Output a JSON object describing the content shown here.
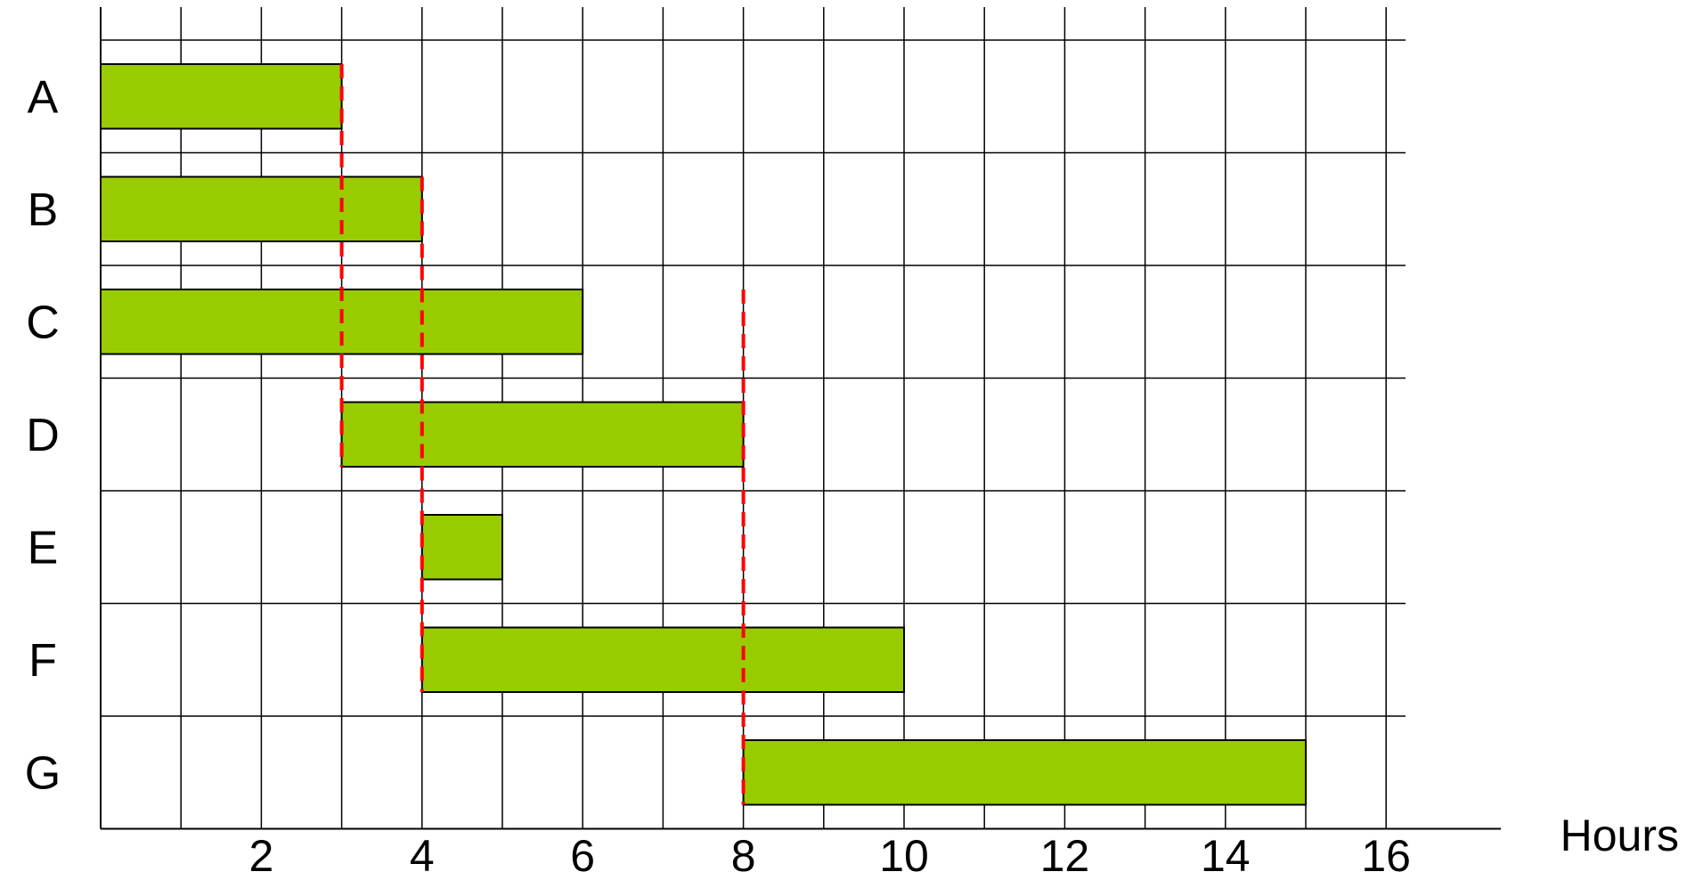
{
  "chart_data": {
    "type": "bar",
    "subtype": "gantt",
    "title": "",
    "xlabel": "Hours",
    "ylabel": "",
    "xlim": [
      0,
      16
    ],
    "xticks": [
      2,
      4,
      6,
      8,
      10,
      12,
      14,
      16
    ],
    "xtick_labels": [
      "2",
      "4",
      "6",
      "8",
      "10",
      "12",
      "14",
      "16"
    ],
    "grid": true,
    "categories": [
      "A",
      "B",
      "C",
      "D",
      "E",
      "F",
      "G"
    ],
    "tasks": [
      {
        "label": "A",
        "start": 0,
        "end": 3
      },
      {
        "label": "B",
        "start": 0,
        "end": 4
      },
      {
        "label": "C",
        "start": 0,
        "end": 6
      },
      {
        "label": "D",
        "start": 3,
        "end": 8
      },
      {
        "label": "E",
        "start": 4,
        "end": 5
      },
      {
        "label": "F",
        "start": 4,
        "end": 10
      },
      {
        "label": "G",
        "start": 8,
        "end": 15
      }
    ],
    "dependency_lines": [
      {
        "x": 3,
        "from_task": "A",
        "to_task": "D"
      },
      {
        "x": 4,
        "from_task": "B",
        "to_task": "F"
      },
      {
        "x": 8,
        "from_task": "C",
        "to_task": "G"
      }
    ],
    "colors": {
      "bar_fill": "#99cc00",
      "bar_stroke": "#000000",
      "grid": "#000000",
      "dependency_line": "#ff0000",
      "text": "#000000"
    }
  }
}
